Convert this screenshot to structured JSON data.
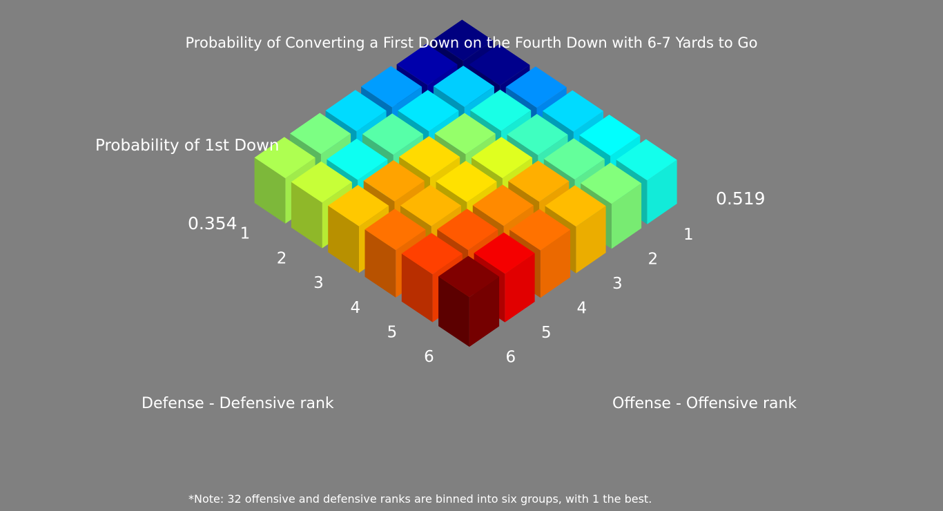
{
  "chart_data": {
    "type": "bar3d",
    "title": "Probability of Converting a First Down on the Fourth Down with 6-7 Yards to Go",
    "z_axis_label": "Probability of 1st Down",
    "z_min_label": "0.354",
    "z_max_label": "0.519",
    "zlim": [
      0.354,
      0.519
    ],
    "x_axis_label": "Defense - Defensive rank",
    "y_axis_label": "Offense - Offensive rank",
    "x_ticks": [
      "1",
      "2",
      "3",
      "4",
      "5",
      "6"
    ],
    "y_ticks": [
      "1",
      "2",
      "3",
      "4",
      "5",
      "6"
    ],
    "colormap": "jet",
    "categories_defense": [
      1,
      2,
      3,
      4,
      5,
      6
    ],
    "categories_offense": [
      1,
      2,
      3,
      4,
      5,
      6
    ],
    "values": [
      [
        0.354,
        0.361,
        0.4,
        0.41,
        0.436,
        0.444
      ],
      [
        0.356,
        0.408,
        0.412,
        0.43,
        0.418,
        0.448
      ],
      [
        0.398,
        0.42,
        0.44,
        0.463,
        0.472,
        0.466
      ],
      [
        0.41,
        0.426,
        0.452,
        0.462,
        0.469,
        0.48
      ],
      [
        0.416,
        0.432,
        0.47,
        0.476,
        0.484,
        0.488
      ],
      [
        0.419,
        0.437,
        0.468,
        0.48,
        0.5,
        0.519
      ]
    ]
  },
  "note": "*Note: 32 offensive and defensive ranks are binned into six groups, with 1 the best."
}
